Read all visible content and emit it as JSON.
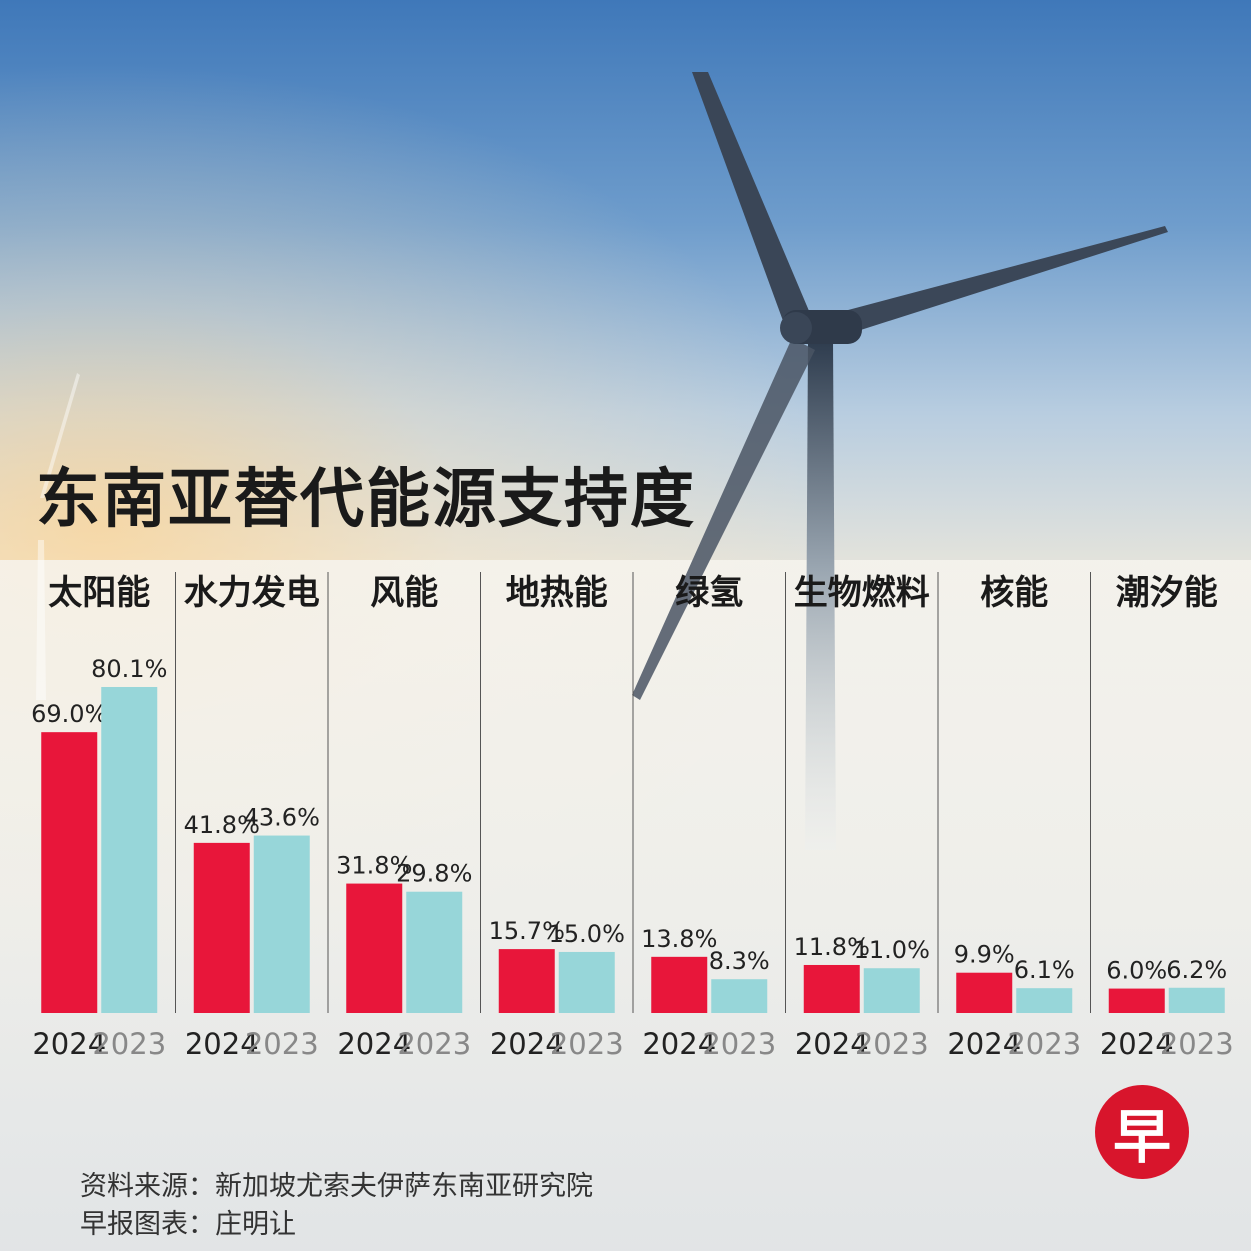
{
  "title": "东南亚替代能源支持度",
  "footer": {
    "source": "资料来源：新加坡尤索夫伊萨东南亚研究院",
    "credit": "早报图表：庄明让"
  },
  "logo": {
    "text": "早",
    "color": "#d8152c"
  },
  "chart_data": {
    "type": "bar",
    "title": "东南亚替代能源支持度",
    "categories": [
      "太阳能",
      "水力发电",
      "风能",
      "地热能",
      "绿氢",
      "生物燃料",
      "核能",
      "潮汐能"
    ],
    "years": [
      "2024",
      "2023"
    ],
    "series": [
      {
        "name": "2024",
        "color": "#e8163a",
        "values": [
          69.0,
          41.8,
          31.8,
          15.7,
          13.8,
          11.8,
          9.9,
          6.0
        ],
        "labels": [
          "69.0%",
          "41.8%",
          "31.8%",
          "15.7%",
          "13.8%",
          "11.8%",
          "9.9%",
          "6.0%"
        ]
      },
      {
        "name": "2023",
        "color": "#97d6d9",
        "values": [
          80.1,
          43.6,
          29.8,
          15.0,
          8.3,
          11.0,
          6.1,
          6.2
        ],
        "labels": [
          "80.1%",
          "43.6%",
          "29.8%",
          "15.0%",
          "8.3%",
          "11.0%",
          "6.1%",
          "6.2%"
        ]
      }
    ],
    "year_label_colors": {
      "2024": "#222222",
      "2023": "#888888"
    },
    "ylim": [
      0,
      100
    ],
    "grid": false,
    "legend": "none"
  }
}
